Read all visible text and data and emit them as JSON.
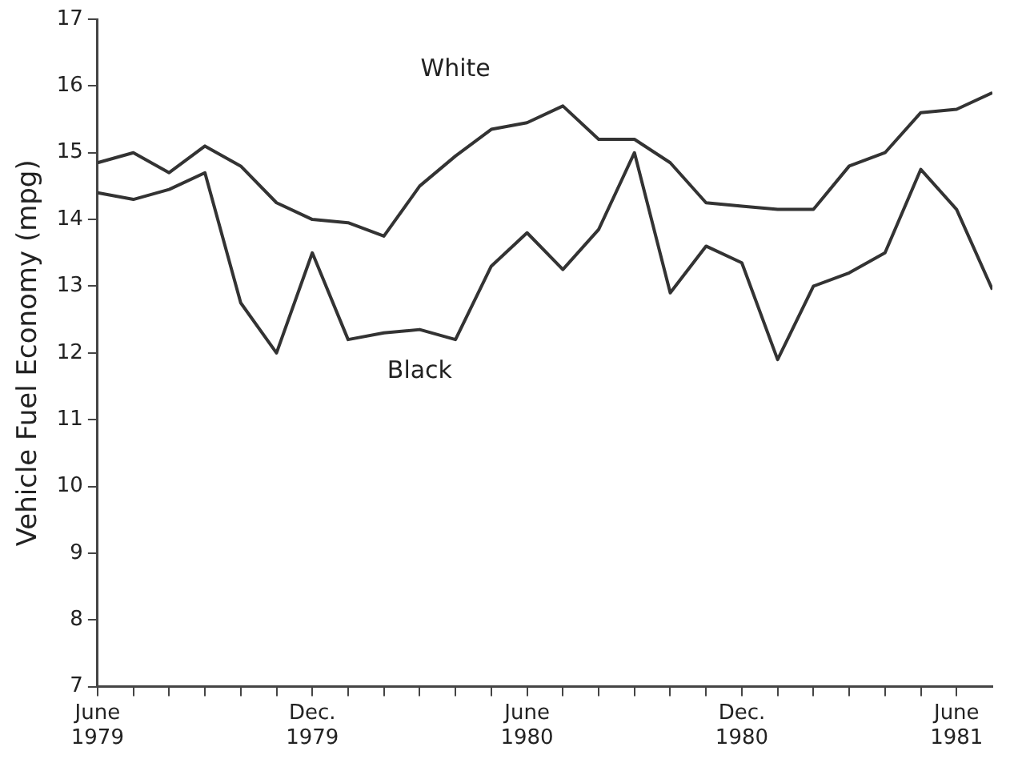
{
  "chart_data": {
    "type": "line",
    "ylabel": "Vehicle Fuel Economy (mpg)",
    "x": [
      "1979-06",
      "1979-07",
      "1979-08",
      "1979-09",
      "1979-10",
      "1979-11",
      "1979-12",
      "1980-01",
      "1980-02",
      "1980-03",
      "1980-04",
      "1980-05",
      "1980-06",
      "1980-07",
      "1980-08",
      "1980-09",
      "1980-10",
      "1980-11",
      "1980-12",
      "1981-01",
      "1981-02",
      "1981-03",
      "1981-04",
      "1981-05",
      "1981-06",
      "1981-07"
    ],
    "series": [
      {
        "name": "White",
        "color": "#333333",
        "values": [
          14.85,
          15.0,
          14.7,
          15.1,
          14.8,
          14.25,
          14.0,
          13.95,
          13.75,
          14.5,
          14.95,
          15.35,
          15.45,
          15.7,
          15.2,
          15.2,
          14.85,
          14.25,
          14.2,
          14.15,
          14.15,
          14.8,
          15.0,
          15.6,
          15.65,
          15.9
        ]
      },
      {
        "name": "Black",
        "color": "#333333",
        "values": [
          14.4,
          14.3,
          14.45,
          14.7,
          12.75,
          12.0,
          13.5,
          12.2,
          12.3,
          12.35,
          12.2,
          13.3,
          13.8,
          13.25,
          13.85,
          15.0,
          12.9,
          13.6,
          13.35,
          11.9,
          13.0,
          13.2,
          13.5,
          14.75,
          14.15,
          12.95
        ]
      }
    ],
    "xlim": [
      "1979-06",
      "1981-07"
    ],
    "xticks": [
      {
        "value": "1979-06",
        "label": "June\n1979"
      },
      {
        "value": "1979-07",
        "label": null
      },
      {
        "value": "1979-08",
        "label": null
      },
      {
        "value": "1979-09",
        "label": null
      },
      {
        "value": "1979-10",
        "label": null
      },
      {
        "value": "1979-11",
        "label": null
      },
      {
        "value": "1979-12",
        "label": "Dec.\n1979"
      },
      {
        "value": "1980-01",
        "label": null
      },
      {
        "value": "1980-02",
        "label": null
      },
      {
        "value": "1980-03",
        "label": null
      },
      {
        "value": "1980-04",
        "label": null
      },
      {
        "value": "1980-05",
        "label": null
      },
      {
        "value": "1980-06",
        "label": "June\n1980"
      },
      {
        "value": "1980-07",
        "label": null
      },
      {
        "value": "1980-08",
        "label": null
      },
      {
        "value": "1980-09",
        "label": null
      },
      {
        "value": "1980-10",
        "label": null
      },
      {
        "value": "1980-11",
        "label": null
      },
      {
        "value": "1980-12",
        "label": "Dec.\n1980"
      },
      {
        "value": "1981-01",
        "label": null
      },
      {
        "value": "1981-02",
        "label": null
      },
      {
        "value": "1981-03",
        "label": null
      },
      {
        "value": "1981-04",
        "label": null
      },
      {
        "value": "1981-05",
        "label": null
      },
      {
        "value": "1981-06",
        "label": "June\n1981"
      }
    ],
    "ylim": [
      7,
      17
    ],
    "yticks": [
      7,
      8,
      9,
      10,
      11,
      12,
      13,
      14,
      15,
      16,
      17
    ],
    "grid": false,
    "legend": false,
    "marker": "none",
    "line_style": "solid"
  }
}
